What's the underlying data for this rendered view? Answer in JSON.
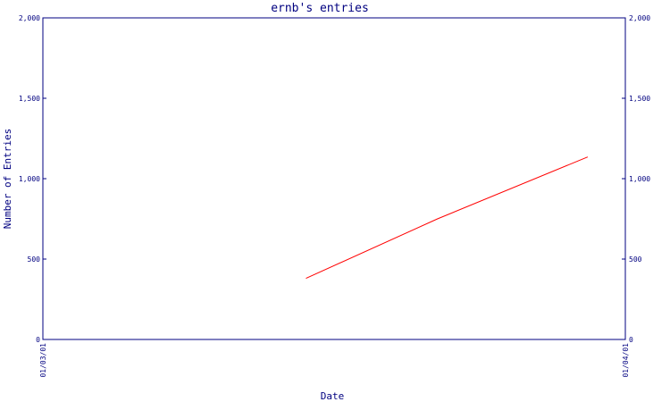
{
  "chart_data": {
    "type": "line",
    "title": "ernb's entries",
    "xlabel": "Date",
    "ylabel": "Number of Entries",
    "x_ticks": [
      "01/03/01",
      "01/04/01"
    ],
    "x_range": [
      "01/03/01",
      "01/04/01"
    ],
    "y_ticks": [
      "0",
      "500",
      "1,000",
      "1,500",
      "2,000"
    ],
    "ylim": [
      0,
      2000
    ],
    "grid": false,
    "legend": "none",
    "series": [
      {
        "color": "#ff0000",
        "points": [
          {
            "x": "01/03/15",
            "y": 380
          },
          {
            "x": "01/03/22",
            "y": 750
          },
          {
            "x": "01/03/30",
            "y": 1135
          }
        ]
      }
    ]
  }
}
